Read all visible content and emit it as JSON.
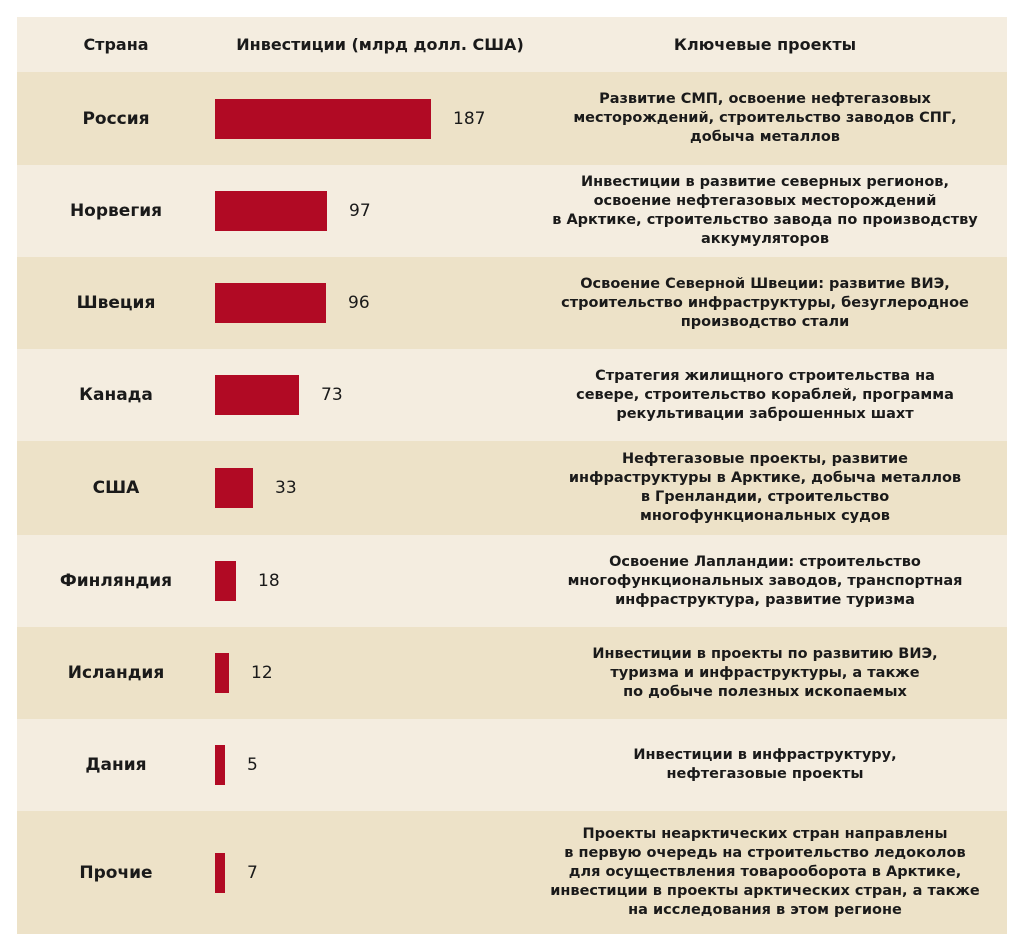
{
  "headers": {
    "country": "Страна",
    "investments": "Инвестиции (млрд долл. США)",
    "projects": "Ключевые проекты"
  },
  "chart_data": {
    "type": "bar",
    "orientation": "horizontal",
    "title": "",
    "xlabel": "Инвестиции (млрд долл. США)",
    "ylabel": "Страна",
    "xlim": [
      0,
      187
    ],
    "categories": [
      "Россия",
      "Норвегия",
      "Швеция",
      "Канада",
      "США",
      "Финляндия",
      "Исландия",
      "Дания",
      "Прочие"
    ],
    "values": [
      187,
      97,
      96,
      73,
      33,
      18,
      12,
      5,
      7
    ],
    "data_labels": [
      "187",
      "97",
      "96",
      "73",
      "33",
      "18",
      "12",
      "5",
      "7"
    ],
    "bar_color": "#b10a24"
  },
  "rows": [
    {
      "country": "Россия",
      "value_label": "187",
      "projects": "Развитие СМП, освоение нефтегазовых\nместорождений, строительство заводов СПГ,\nдобыча металлов"
    },
    {
      "country": "Норвегия",
      "value_label": "97",
      "projects": "Инвестиции в развитие северных регионов,\nосвоение нефтегазовых месторождений\nв Арктике, строительство завода по производству\nаккумуляторов"
    },
    {
      "country": "Швеция",
      "value_label": "96",
      "projects": "Освоение Северной Швеции: развитие ВИЭ,\nстроительство инфраструктуры, безуглеродное\nпроизводство стали"
    },
    {
      "country": "Канада",
      "value_label": "73",
      "projects": "Стратегия жилищного строительства на\nсевере, строительство кораблей, программа\nрекультивации заброшенных шахт"
    },
    {
      "country": "США",
      "value_label": "33",
      "projects": "Нефтегазовые проекты, развитие\nинфраструктуры в Арктике, добыча металлов\nв Гренландии, строительство\nмногофункциональных судов"
    },
    {
      "country": "Финляндия",
      "value_label": "18",
      "projects": "Освоение Лапландии: строительство\nмногофункциональных заводов, транспортная\nинфраструктура, развитие туризма"
    },
    {
      "country": "Исландия",
      "value_label": "12",
      "projects": "Инвестиции в проекты по развитию ВИЭ,\nтуризма и инфраструктуры, а также\nпо добыче полезных ископаемых"
    },
    {
      "country": "Дания",
      "value_label": "5",
      "projects": "Инвестиции в инфраструктуру,\nнефтегазовые проекты"
    },
    {
      "country": "Прочие",
      "value_label": "7",
      "projects": "Проекты неарктических стран направлены\nв первую очередь на строительство ледоколов\nдля осуществления товарооборота в Арктике,\nинвестиции в проекты арктических стран, а также\nна исследования в этом регионе"
    }
  ]
}
